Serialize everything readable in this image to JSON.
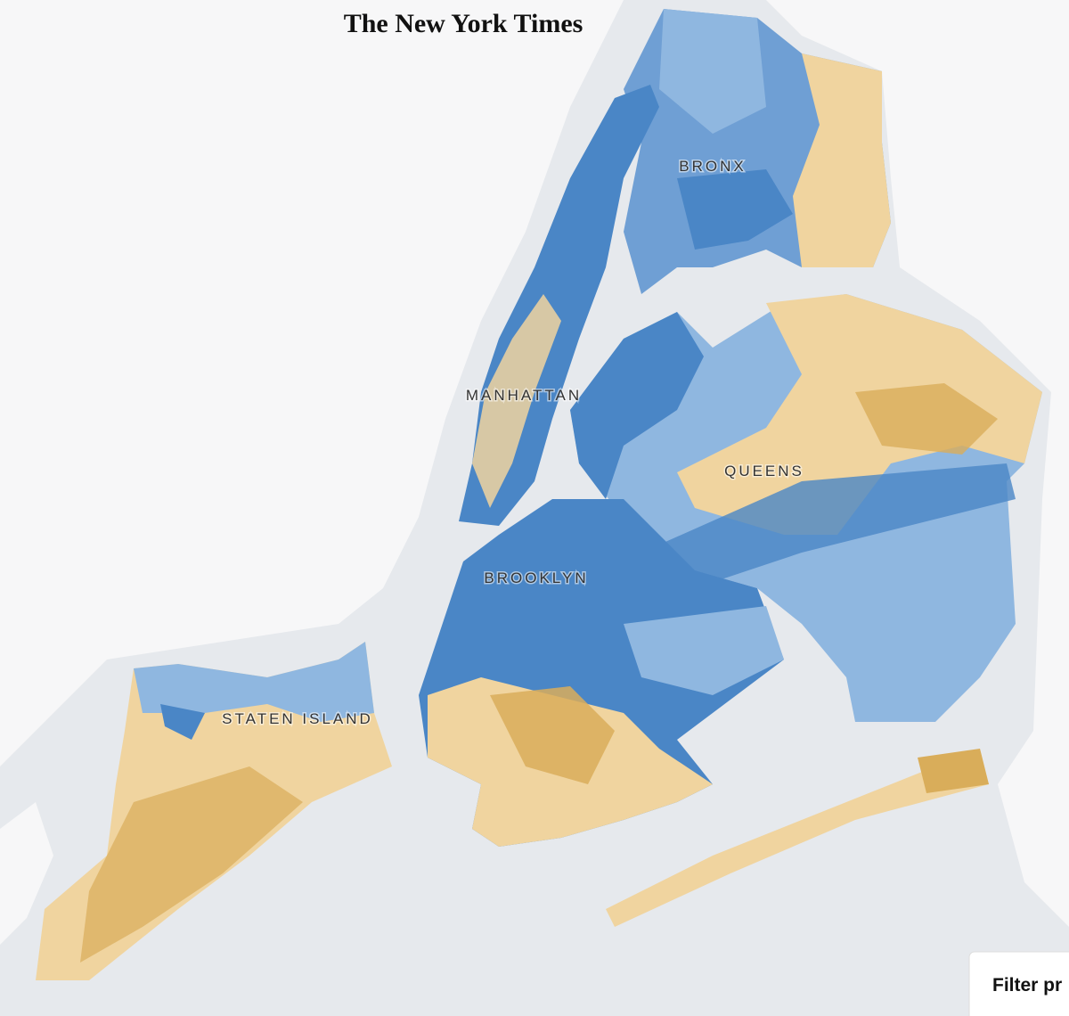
{
  "header": {
    "title": "The New York Times"
  },
  "labels": {
    "bronx": "BRONX",
    "manhattan": "MANHATTAN",
    "queens": "QUEENS",
    "brooklyn": "BROOKLYN",
    "staten_island": "STATEN ISLAND"
  },
  "button": {
    "label": "Filter pr"
  }
}
